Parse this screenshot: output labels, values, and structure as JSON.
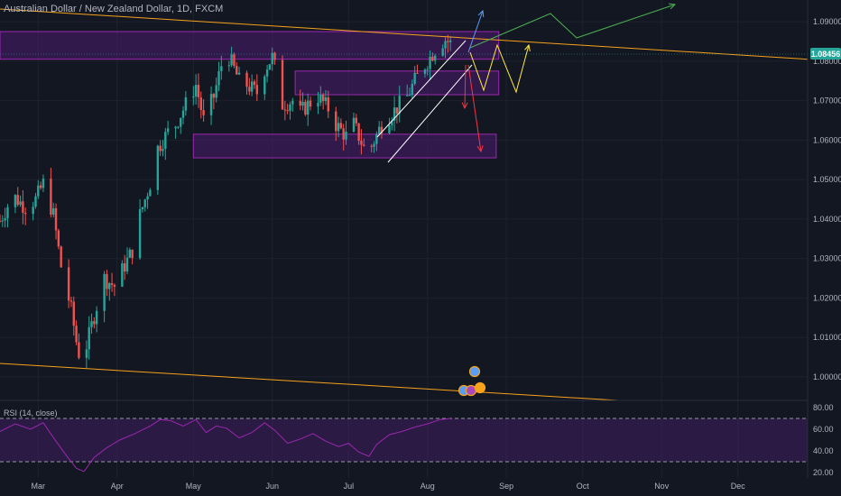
{
  "title": "Australian Dollar / New Zealand Dollar, 1D, FXCM",
  "price_badge": "1.08456",
  "rsi_label": "RSI (14, close)",
  "colors": {
    "background": "#131722",
    "bull": "#26a69a",
    "bear": "#ef5350",
    "zone_fill": "#4a1e6e",
    "zone_stroke": "#9c27b0",
    "trendline": "#f7a21b",
    "channel": "#ffffff",
    "projection_up_green": "#4caf50",
    "projection_yellow": "#ffeb3b",
    "projection_down_red": "#f23645",
    "projection_up_blue": "#5b9cf6",
    "rsi_line": "#9c27b0",
    "badge": "#26a69a"
  },
  "chart_data": [
    {
      "type": "candlestick",
      "title": "Australian Dollar / New Zealand Dollar, 1D, FXCM",
      "x_tick_labels": [
        "Mar",
        "Apr",
        "May",
        "Jun",
        "Jul",
        "Aug",
        "Sep",
        "Oct",
        "Nov",
        "Dec"
      ],
      "y_tick_labels": [
        "1.09000",
        "1.08000",
        "1.07000",
        "1.06000",
        "1.05000",
        "1.04000",
        "1.03000",
        "1.02000",
        "1.01000",
        "1.00000"
      ],
      "ylim": [
        0.9945,
        1.0955
      ],
      "last_price": 1.08456,
      "close_path": [
        [
          "Feb 14",
          1.0395
        ],
        [
          "Feb 19",
          1.046
        ],
        [
          "Feb 24",
          1.043
        ],
        [
          "Feb 28",
          1.045
        ],
        [
          "Mar 3",
          1.049
        ],
        [
          "Mar 7",
          1.041
        ],
        [
          "Mar 10",
          1.028
        ],
        [
          "Mar 14",
          1.017
        ],
        [
          "Mar 16",
          1.009
        ],
        [
          "Mar 18",
          1.003
        ],
        [
          "Mar 20",
          1.008
        ],
        [
          "Mar 24",
          1.018
        ],
        [
          "Mar 27",
          1.025
        ],
        [
          "Mar 31",
          1.023
        ],
        [
          "Apr 3",
          1.027
        ],
        [
          "Apr 7",
          1.032
        ],
        [
          "Apr 10",
          1.041
        ],
        [
          "Apr 14",
          1.049
        ],
        [
          "Apr 17",
          1.058
        ],
        [
          "Apr 21",
          1.062
        ],
        [
          "Apr 24",
          1.064
        ],
        [
          "Apr 28",
          1.069
        ],
        [
          "May 2",
          1.074
        ],
        [
          "May 5",
          1.065
        ],
        [
          "May 9",
          1.071
        ],
        [
          "May 12",
          1.079
        ],
        [
          "May 15",
          1.081
        ],
        [
          "May 19",
          1.075
        ],
        [
          "May 22",
          1.074
        ],
        [
          "May 26",
          1.072
        ],
        [
          "May 29",
          1.078
        ],
        [
          "Jun 1",
          1.081
        ],
        [
          "Jun 3",
          1.076
        ],
        [
          "Jun 5",
          1.069
        ],
        [
          "Jun 9",
          1.07
        ],
        [
          "Jun 12",
          1.067
        ],
        [
          "Jun 15",
          1.069
        ],
        [
          "Jun 19",
          1.071
        ],
        [
          "Jun 23",
          1.068
        ],
        [
          "Jun 26",
          1.064
        ],
        [
          "Jun 30",
          1.061
        ],
        [
          "Jul 3",
          1.064
        ],
        [
          "Jul 7",
          1.058
        ],
        [
          "Jul 10",
          1.0585
        ],
        [
          "Jul 14",
          1.064
        ],
        [
          "Jul 17",
          1.066
        ],
        [
          "Jul 21",
          1.069
        ],
        [
          "Jul 24",
          1.071
        ],
        [
          "Jul 27",
          1.075
        ],
        [
          "Jul 30",
          1.078
        ],
        [
          "Aug 2",
          1.081
        ],
        [
          "Aug 5",
          1.084
        ],
        [
          "Aug 8",
          1.0855
        ],
        [
          "Aug 10",
          1.0845
        ]
      ],
      "supply_demand_zones": [
        {
          "label": "zone-1",
          "from": "Feb 14",
          "to": "Aug 29",
          "low": 1.0805,
          "high": 1.0875
        },
        {
          "label": "zone-2",
          "from": "Jun 10",
          "to": "Aug 29",
          "low": 1.0715,
          "high": 1.0775
        },
        {
          "label": "zone-3",
          "from": "May 1",
          "to": "Aug 28",
          "low": 1.0555,
          "high": 1.0615
        }
      ]
    },
    {
      "type": "line",
      "title": "RSI (14, close)",
      "y_tick_labels": [
        "80.00",
        "60.00",
        "40.00",
        "20.00"
      ],
      "ylim": [
        15,
        85
      ],
      "bands": [
        70,
        30
      ],
      "series": [
        {
          "points": [
            [
              "Feb 14",
              58
            ],
            [
              "Feb 20",
              65
            ],
            [
              "Feb 26",
              60
            ],
            [
              "Mar 3",
              66
            ],
            [
              "Mar 8",
              49
            ],
            [
              "Mar 12",
              36
            ],
            [
              "Mar 16",
              24
            ],
            [
              "Mar 19",
              21
            ],
            [
              "Mar 23",
              34
            ],
            [
              "Mar 28",
              43
            ],
            [
              "Apr 2",
              50
            ],
            [
              "Apr 8",
              56
            ],
            [
              "Apr 14",
              63
            ],
            [
              "Apr 18",
              69
            ],
            [
              "Apr 22",
              68
            ],
            [
              "Apr 27",
              63
            ],
            [
              "May 2",
              69
            ],
            [
              "May 6",
              57
            ],
            [
              "May 10",
              63
            ],
            [
              "May 14",
              61
            ],
            [
              "May 19",
              52
            ],
            [
              "May 24",
              57
            ],
            [
              "May 29",
              66
            ],
            [
              "Jun 2",
              59
            ],
            [
              "Jun 7",
              47
            ],
            [
              "Jun 12",
              51
            ],
            [
              "Jun 17",
              56
            ],
            [
              "Jun 22",
              49
            ],
            [
              "Jun 27",
              44
            ],
            [
              "Jul 1",
              47
            ],
            [
              "Jul 5",
              39
            ],
            [
              "Jul 9",
              35
            ],
            [
              "Jul 12",
              46
            ],
            [
              "Jul 17",
              55
            ],
            [
              "Jul 22",
              58
            ],
            [
              "Jul 27",
              62
            ],
            [
              "Aug 1",
              65
            ],
            [
              "Aug 6",
              69
            ],
            [
              "Aug 10",
              70
            ]
          ]
        }
      ]
    }
  ]
}
